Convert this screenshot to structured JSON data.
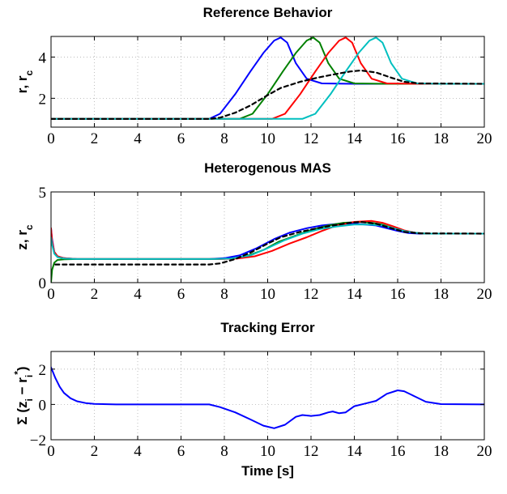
{
  "chart_data": [
    {
      "type": "line",
      "title": "Reference Behavior",
      "ylabel": "r, r_c",
      "xlim": [
        0,
        20
      ],
      "ylim": [
        0.6,
        5.0
      ],
      "xticks": [
        0,
        2,
        4,
        6,
        8,
        10,
        12,
        14,
        16,
        18,
        20
      ],
      "yticks": [
        2,
        4
      ],
      "grid": true,
      "series": [
        {
          "color": "#0000ff",
          "style": "solid",
          "x": [
            0,
            7.3,
            7.8,
            8.5,
            9.2,
            9.8,
            10.3,
            10.6,
            10.9,
            11.3,
            11.8,
            12.5,
            14,
            16,
            20
          ],
          "y": [
            1.0,
            1.0,
            1.25,
            2.2,
            3.3,
            4.2,
            4.8,
            4.95,
            4.7,
            3.7,
            2.95,
            2.72,
            2.7,
            2.7,
            2.7
          ]
        },
        {
          "color": "#008000",
          "style": "solid",
          "x": [
            0,
            8.7,
            9.3,
            10.0,
            10.7,
            11.3,
            11.8,
            12.1,
            12.4,
            12.8,
            13.3,
            14.0,
            15.5,
            20
          ],
          "y": [
            1.0,
            1.0,
            1.25,
            2.2,
            3.3,
            4.2,
            4.8,
            4.95,
            4.7,
            3.7,
            2.95,
            2.72,
            2.7,
            2.7
          ]
        },
        {
          "color": "#ff0000",
          "style": "solid",
          "x": [
            0,
            10.2,
            10.8,
            11.5,
            12.2,
            12.8,
            13.3,
            13.6,
            13.9,
            14.3,
            14.8,
            15.5,
            17,
            20
          ],
          "y": [
            1.0,
            1.0,
            1.25,
            2.2,
            3.3,
            4.2,
            4.8,
            4.95,
            4.7,
            3.7,
            2.95,
            2.72,
            2.7,
            2.7
          ]
        },
        {
          "color": "#00bfbf",
          "style": "solid",
          "x": [
            0,
            11.6,
            12.2,
            12.9,
            13.6,
            14.2,
            14.7,
            15.0,
            15.3,
            15.7,
            16.2,
            16.9,
            18,
            20
          ],
          "y": [
            1.0,
            1.0,
            1.25,
            2.2,
            3.3,
            4.2,
            4.8,
            4.95,
            4.7,
            3.7,
            2.95,
            2.72,
            2.7,
            2.7
          ]
        },
        {
          "color": "#000000",
          "style": "dashed",
          "x": [
            0,
            7.3,
            7.8,
            8.5,
            9.2,
            10.0,
            10.6,
            11.5,
            12.3,
            13.0,
            13.8,
            14.3,
            15.0,
            15.7,
            16.3,
            17.0,
            20
          ],
          "y": [
            1.0,
            1.0,
            1.06,
            1.3,
            1.65,
            2.15,
            2.5,
            2.8,
            3.0,
            3.15,
            3.3,
            3.35,
            3.25,
            3.0,
            2.8,
            2.72,
            2.7
          ]
        }
      ]
    },
    {
      "type": "line",
      "title": "Heterogenous MAS",
      "ylabel": "z, r_c",
      "xlim": [
        0,
        20
      ],
      "ylim": [
        0,
        5
      ],
      "xticks": [
        0,
        2,
        4,
        6,
        8,
        10,
        12,
        14,
        16,
        18,
        20
      ],
      "yticks": [
        0,
        5
      ],
      "grid": true,
      "series": [
        {
          "color": "#0000ff",
          "style": "solid",
          "x": [
            0,
            0.05,
            0.15,
            0.3,
            0.6,
            1.2,
            7.3,
            8.0,
            8.7,
            9.5,
            10.3,
            11.0,
            11.8,
            12.5,
            13.3,
            14.0,
            14.5,
            15.0,
            15.5,
            16.0,
            16.5,
            17.0,
            20
          ],
          "y": [
            3.0,
            2.4,
            1.7,
            1.45,
            1.35,
            1.3,
            1.3,
            1.35,
            1.5,
            1.9,
            2.4,
            2.75,
            3.0,
            3.15,
            3.25,
            3.25,
            3.2,
            3.15,
            3.0,
            2.85,
            2.73,
            2.7,
            2.7
          ]
        },
        {
          "color": "#008000",
          "style": "solid",
          "x": [
            0,
            0.05,
            0.15,
            0.3,
            0.6,
            1.2,
            7.5,
            8.3,
            9.0,
            9.8,
            10.5,
            11.3,
            12.0,
            12.8,
            13.5,
            14.3,
            14.8,
            15.3,
            15.8,
            16.3,
            16.8,
            17.3,
            20
          ],
          "y": [
            0.0,
            0.7,
            1.1,
            1.25,
            1.28,
            1.3,
            1.3,
            1.32,
            1.45,
            1.8,
            2.25,
            2.6,
            2.9,
            3.15,
            3.3,
            3.35,
            3.3,
            3.2,
            3.0,
            2.85,
            2.75,
            2.7,
            2.7
          ]
        },
        {
          "color": "#ff0000",
          "style": "solid",
          "x": [
            0,
            0.05,
            0.15,
            0.3,
            0.6,
            1.2,
            7.8,
            8.6,
            9.4,
            10.2,
            11.0,
            11.8,
            12.5,
            13.2,
            14.0,
            14.8,
            15.3,
            15.8,
            16.3,
            16.8,
            17.3,
            20
          ],
          "y": [
            3.0,
            2.3,
            1.7,
            1.45,
            1.35,
            1.3,
            1.3,
            1.33,
            1.45,
            1.75,
            2.15,
            2.5,
            2.85,
            3.15,
            3.35,
            3.4,
            3.3,
            3.1,
            2.88,
            2.75,
            2.7,
            2.7
          ]
        },
        {
          "color": "#00bfbf",
          "style": "solid",
          "x": [
            0,
            0.05,
            0.15,
            0.3,
            0.6,
            1.2,
            7.5,
            8.3,
            9.2,
            10.0,
            10.8,
            11.6,
            12.4,
            13.2,
            14.0,
            14.7,
            15.3,
            15.8,
            16.3,
            16.8,
            17.3,
            20
          ],
          "y": [
            2.5,
            2.1,
            1.6,
            1.4,
            1.33,
            1.3,
            1.3,
            1.33,
            1.5,
            1.9,
            2.35,
            2.7,
            2.95,
            3.1,
            3.2,
            3.2,
            3.15,
            3.0,
            2.85,
            2.75,
            2.7,
            2.7
          ]
        },
        {
          "color": "#000000",
          "style": "dashed",
          "x": [
            0.2,
            7.3,
            7.8,
            8.5,
            9.2,
            10.0,
            10.6,
            11.5,
            12.3,
            13.0,
            13.8,
            14.3,
            15.0,
            15.7,
            16.3,
            17.0,
            20
          ],
          "y": [
            1.0,
            1.0,
            1.06,
            1.3,
            1.65,
            2.15,
            2.5,
            2.8,
            3.0,
            3.15,
            3.3,
            3.35,
            3.25,
            3.0,
            2.8,
            2.72,
            2.7
          ]
        }
      ]
    },
    {
      "type": "line",
      "title": "Tracking Error",
      "xlabel": "Time [s]",
      "ylabel": "Σ (z_i − r_i^*)",
      "xlim": [
        0,
        20
      ],
      "ylim": [
        -2,
        3
      ],
      "xticks": [
        0,
        2,
        4,
        6,
        8,
        10,
        12,
        14,
        16,
        18,
        20
      ],
      "yticks": [
        -2,
        0,
        2
      ],
      "grid": true,
      "series": [
        {
          "color": "#0000ff",
          "style": "solid",
          "x": [
            0,
            0.2,
            0.4,
            0.6,
            0.9,
            1.2,
            1.6,
            2.0,
            3.0,
            7.3,
            7.8,
            8.5,
            9.2,
            9.8,
            10.3,
            10.8,
            11.3,
            11.6,
            12.0,
            12.4,
            12.8,
            13.0,
            13.3,
            13.6,
            14.0,
            14.5,
            15.0,
            15.5,
            16.0,
            16.3,
            16.8,
            17.3,
            18.0,
            20
          ],
          "y": [
            2.1,
            1.5,
            1.0,
            0.65,
            0.35,
            0.18,
            0.08,
            0.03,
            0.0,
            0.0,
            -0.15,
            -0.45,
            -0.85,
            -1.2,
            -1.35,
            -1.15,
            -0.7,
            -0.6,
            -0.65,
            -0.6,
            -0.45,
            -0.4,
            -0.5,
            -0.45,
            -0.1,
            0.05,
            0.2,
            0.6,
            0.8,
            0.75,
            0.45,
            0.15,
            0.02,
            0.0
          ]
        }
      ]
    }
  ]
}
